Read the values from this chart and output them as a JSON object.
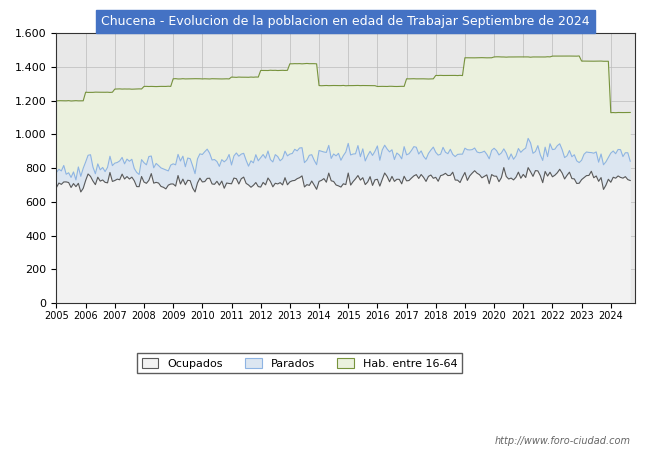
{
  "title": "Chucena - Evolucion de la poblacion en edad de Trabajar Septiembre de 2024",
  "title_bg": "#4472c4",
  "title_color": "#ffffff",
  "ylim": [
    0,
    1600
  ],
  "yticks": [
    0,
    200,
    400,
    600,
    800,
    1000,
    1200,
    1400,
    1600
  ],
  "xmin": 2005,
  "xmax": 2024.83,
  "watermark": "http://www.foro-ciudad.com",
  "legend_labels": [
    "Ocupados",
    "Parados",
    "Hab. entre 16-64"
  ],
  "legend_colors": [
    "#f2f2f2",
    "#dce6f1",
    "#ebf1de"
  ],
  "legend_edge_colors": [
    "#595959",
    "#8eb4e3",
    "#77933c"
  ],
  "ocupados_line_color": "#595959",
  "parados_line_color": "#8eb4e3",
  "hab_line_color": "#77933c",
  "ocupados_fill": "#f2f2f2",
  "parados_fill": "#dce6f1",
  "hab_fill": "#ebf1de",
  "line_width": 0.8,
  "background_color": "#ffffff",
  "plot_bg": "#e8e8e8",
  "title_fontsize": 9,
  "axis_fontsize": 8,
  "xtick_fontsize": 7
}
